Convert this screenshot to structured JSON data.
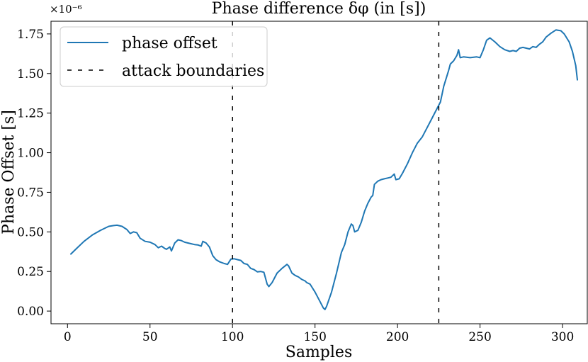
{
  "chart_data": {
    "type": "line",
    "title": "Phase difference δφ (in [s])",
    "xlabel": "Samples",
    "ylabel": "Phase Offset [s]",
    "y_scale_note": "×10⁻⁶",
    "xlim": [
      -10,
      315
    ],
    "ylim": [
      -0.08,
      1.83
    ],
    "x_ticks": [
      0,
      50,
      100,
      150,
      200,
      250,
      300
    ],
    "y_ticks": [
      0.0,
      0.25,
      0.5,
      0.75,
      1.0,
      1.25,
      1.5,
      1.75
    ],
    "x_tick_labels": [
      "0",
      "50",
      "100",
      "150",
      "200",
      "250",
      "300"
    ],
    "y_tick_labels": [
      "0.00",
      "0.25",
      "0.50",
      "0.75",
      "1.00",
      "1.25",
      "1.50",
      "1.75"
    ],
    "legend": {
      "position": "upper-left",
      "entries": [
        "phase offset",
        "attack boundaries"
      ]
    },
    "series": [
      {
        "name": "phase offset",
        "color": "#1f77b4",
        "style": "solid",
        "points": [
          [
            2,
            0.36
          ],
          [
            5,
            0.39
          ],
          [
            10,
            0.44
          ],
          [
            15,
            0.48
          ],
          [
            20,
            0.51
          ],
          [
            25,
            0.535
          ],
          [
            28,
            0.54
          ],
          [
            30,
            0.542
          ],
          [
            33,
            0.535
          ],
          [
            36,
            0.515
          ],
          [
            38,
            0.49
          ],
          [
            40,
            0.5
          ],
          [
            42,
            0.495
          ],
          [
            44,
            0.46
          ],
          [
            47,
            0.44
          ],
          [
            50,
            0.435
          ],
          [
            53,
            0.42
          ],
          [
            55,
            0.4
          ],
          [
            57,
            0.41
          ],
          [
            59,
            0.395
          ],
          [
            60,
            0.39
          ],
          [
            62,
            0.405
          ],
          [
            63,
            0.38
          ],
          [
            65,
            0.43
          ],
          [
            67,
            0.45
          ],
          [
            69,
            0.445
          ],
          [
            71,
            0.435
          ],
          [
            73,
            0.43
          ],
          [
            75,
            0.425
          ],
          [
            77,
            0.42
          ],
          [
            79,
            0.418
          ],
          [
            81,
            0.41
          ],
          [
            82,
            0.44
          ],
          [
            84,
            0.43
          ],
          [
            86,
            0.405
          ],
          [
            88,
            0.35
          ],
          [
            90,
            0.325
          ],
          [
            92,
            0.312
          ],
          [
            95,
            0.3
          ],
          [
            97,
            0.295
          ],
          [
            99,
            0.328
          ],
          [
            101,
            0.33
          ],
          [
            103,
            0.325
          ],
          [
            105,
            0.32
          ],
          [
            107,
            0.3
          ],
          [
            109,
            0.295
          ],
          [
            111,
            0.27
          ],
          [
            113,
            0.262
          ],
          [
            115,
            0.248
          ],
          [
            117,
            0.25
          ],
          [
            119,
            0.245
          ],
          [
            121,
            0.17
          ],
          [
            122,
            0.155
          ],
          [
            124,
            0.18
          ],
          [
            127,
            0.24
          ],
          [
            130,
            0.27
          ],
          [
            133,
            0.295
          ],
          [
            134,
            0.285
          ],
          [
            136,
            0.24
          ],
          [
            138,
            0.225
          ],
          [
            140,
            0.215
          ],
          [
            142,
            0.2
          ],
          [
            144,
            0.19
          ],
          [
            145,
            0.18
          ],
          [
            147,
            0.17
          ],
          [
            150,
            0.12
          ],
          [
            153,
            0.06
          ],
          [
            155,
            0.02
          ],
          [
            156,
            0.01
          ],
          [
            157,
            0.03
          ],
          [
            160,
            0.12
          ],
          [
            163,
            0.24
          ],
          [
            166,
            0.37
          ],
          [
            168,
            0.42
          ],
          [
            170,
            0.5
          ],
          [
            172,
            0.55
          ],
          [
            173,
            0.54
          ],
          [
            174,
            0.5
          ],
          [
            176,
            0.51
          ],
          [
            178,
            0.56
          ],
          [
            180,
            0.63
          ],
          [
            182,
            0.68
          ],
          [
            184,
            0.72
          ],
          [
            185,
            0.73
          ],
          [
            186,
            0.8
          ],
          [
            188,
            0.82
          ],
          [
            190,
            0.83
          ],
          [
            192,
            0.835
          ],
          [
            194,
            0.84
          ],
          [
            196,
            0.845
          ],
          [
            198,
            0.865
          ],
          [
            199,
            0.83
          ],
          [
            201,
            0.835
          ],
          [
            203,
            0.87
          ],
          [
            206,
            0.93
          ],
          [
            209,
            1.0
          ],
          [
            212,
            1.06
          ],
          [
            215,
            1.1
          ],
          [
            218,
            1.16
          ],
          [
            221,
            1.22
          ],
          [
            224,
            1.28
          ],
          [
            226,
            1.32
          ],
          [
            228,
            1.42
          ],
          [
            231,
            1.52
          ],
          [
            232,
            1.56
          ],
          [
            234,
            1.58
          ],
          [
            236,
            1.615
          ],
          [
            237,
            1.65
          ],
          [
            238,
            1.6
          ],
          [
            240,
            1.605
          ],
          [
            244,
            1.6
          ],
          [
            248,
            1.605
          ],
          [
            250,
            1.6
          ],
          [
            252,
            1.65
          ],
          [
            254,
            1.71
          ],
          [
            256,
            1.725
          ],
          [
            259,
            1.7
          ],
          [
            262,
            1.67
          ],
          [
            265,
            1.65
          ],
          [
            268,
            1.64
          ],
          [
            270,
            1.645
          ],
          [
            272,
            1.64
          ],
          [
            274,
            1.66
          ],
          [
            276,
            1.665
          ],
          [
            278,
            1.66
          ],
          [
            280,
            1.655
          ],
          [
            282,
            1.67
          ],
          [
            284,
            1.665
          ],
          [
            286,
            1.685
          ],
          [
            288,
            1.7
          ],
          [
            290,
            1.73
          ],
          [
            293,
            1.755
          ],
          [
            296,
            1.775
          ],
          [
            299,
            1.77
          ],
          [
            301,
            1.75
          ],
          [
            304,
            1.7
          ],
          [
            306,
            1.64
          ],
          [
            308,
            1.55
          ],
          [
            309,
            1.46
          ]
        ]
      }
    ],
    "vlines": [
      {
        "name": "attack boundaries",
        "x": 100,
        "color": "#000000",
        "style": "dashed"
      },
      {
        "name": "attack boundaries",
        "x": 225,
        "color": "#000000",
        "style": "dashed"
      }
    ]
  }
}
